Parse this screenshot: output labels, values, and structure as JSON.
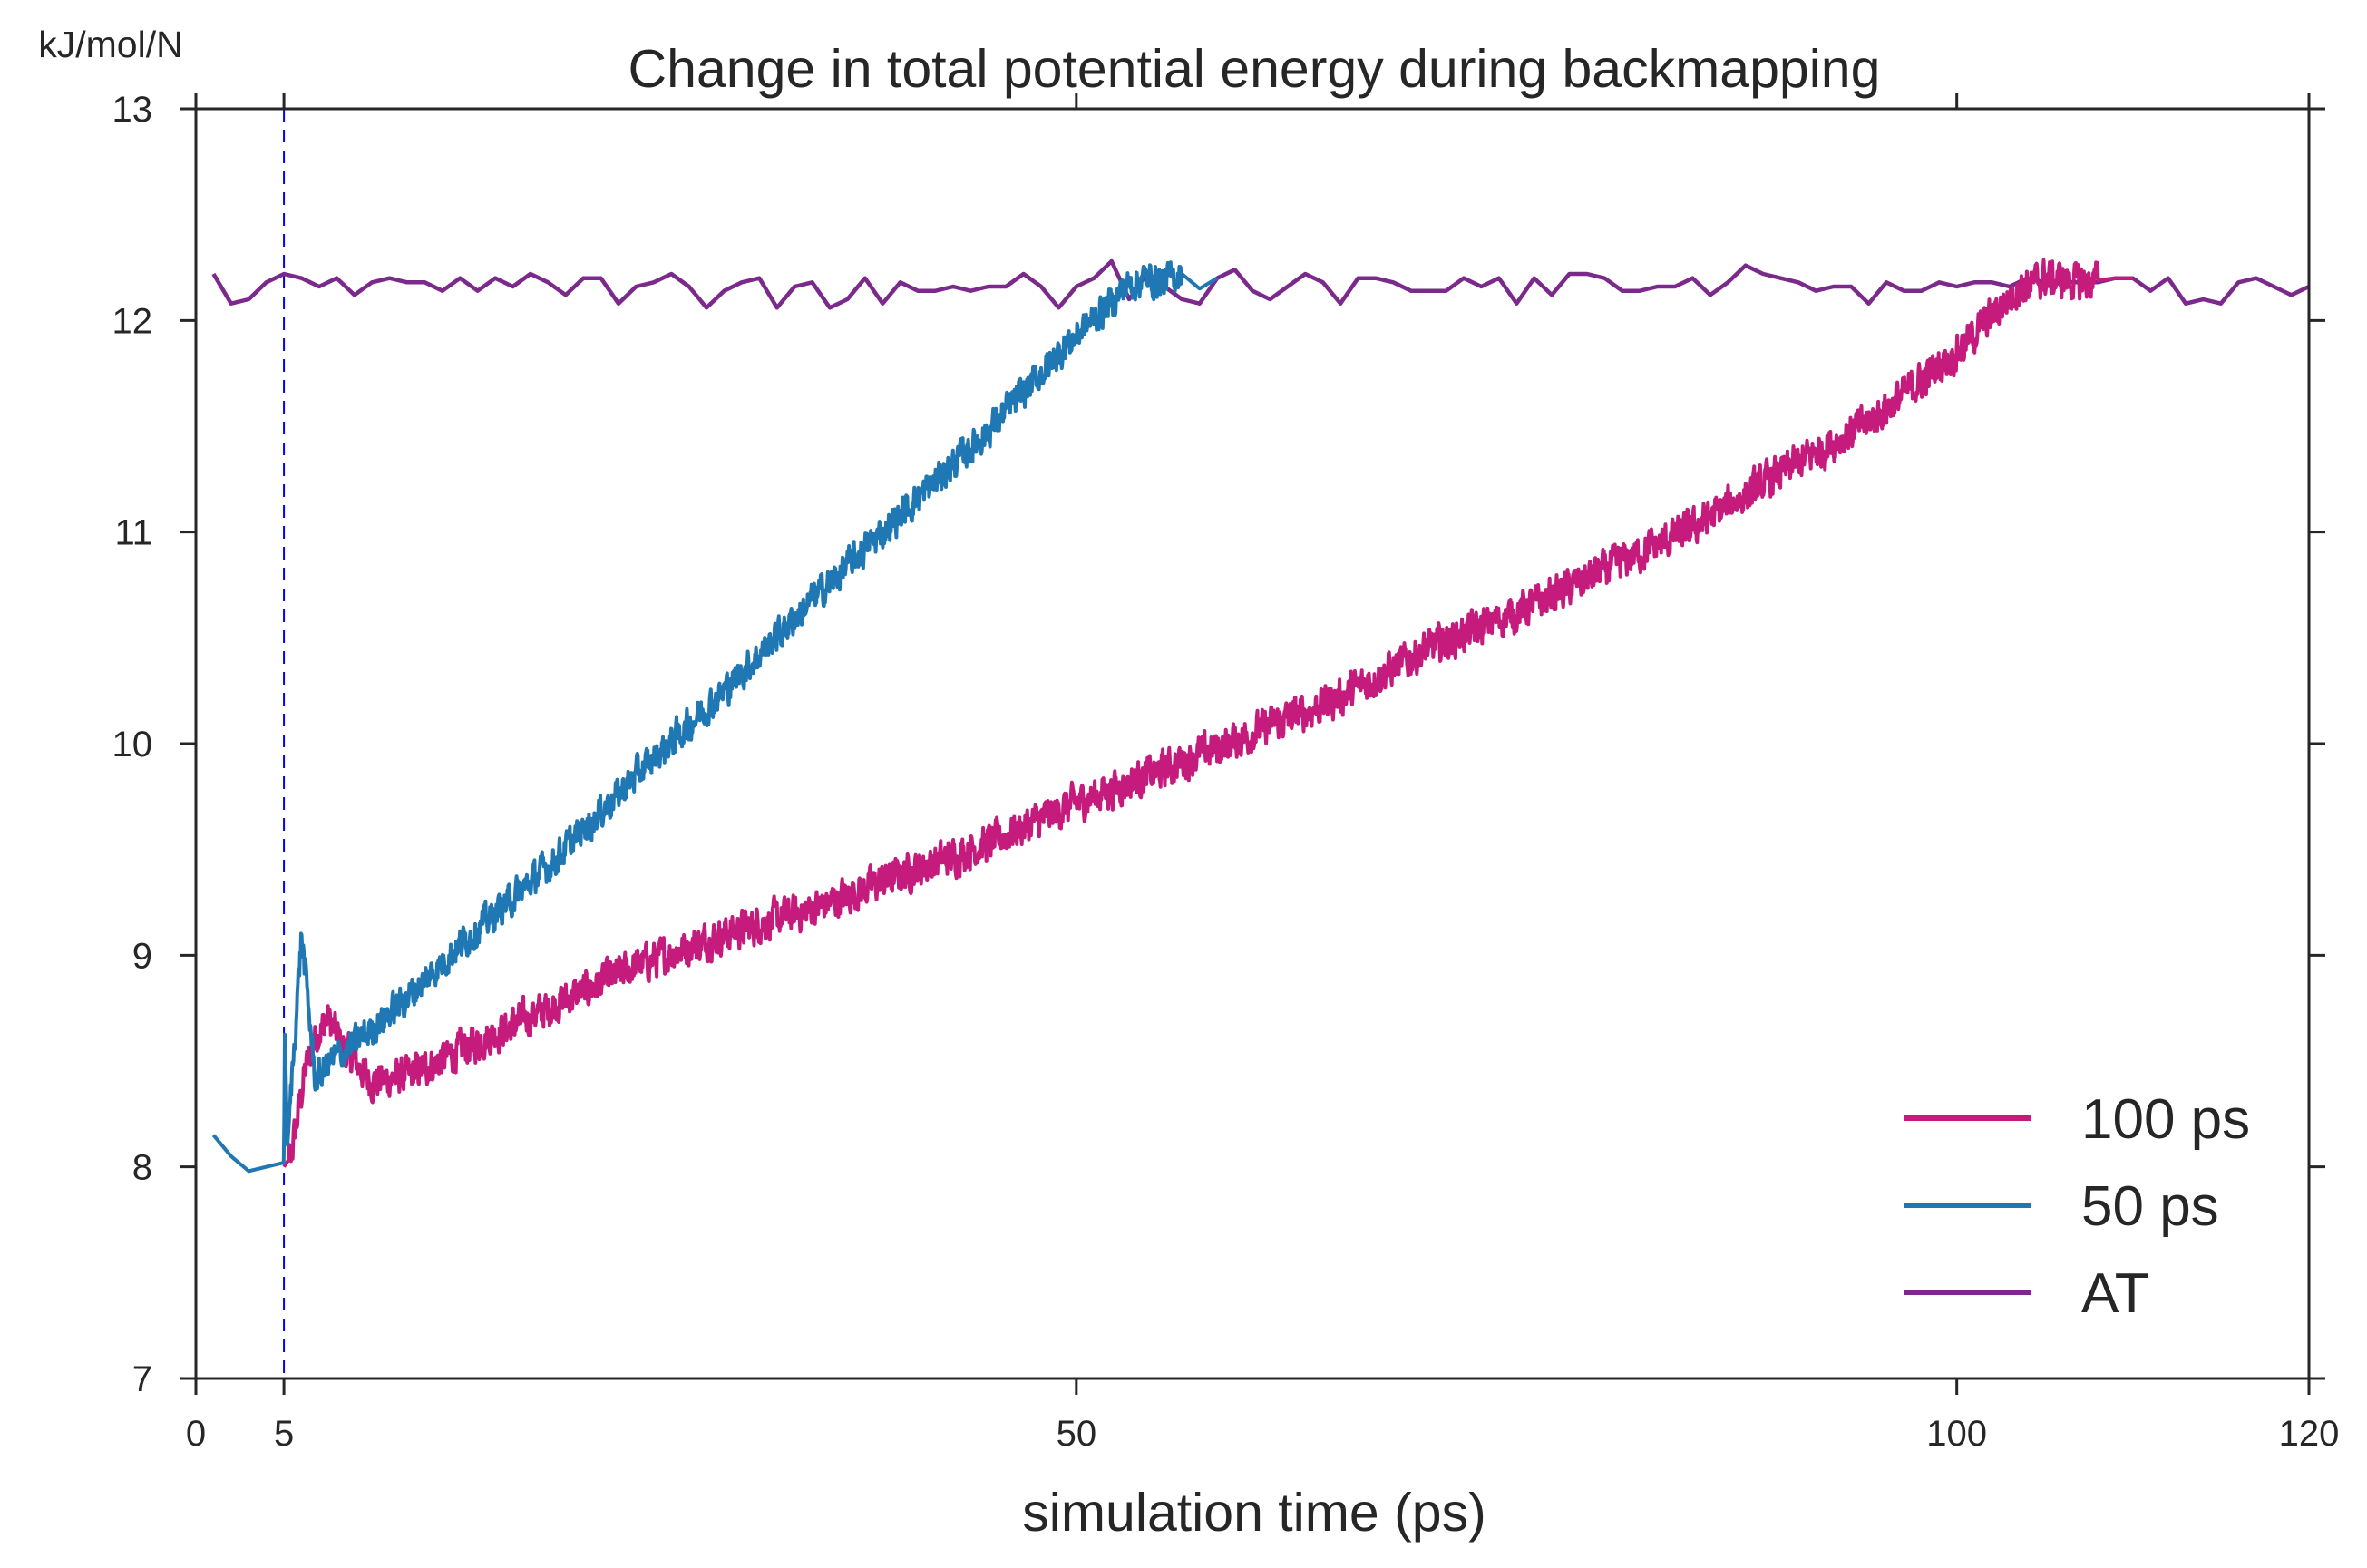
{
  "chart_data": {
    "type": "line",
    "title": "Change in total potential energy during backmapping",
    "xlabel": "simulation time (ps)",
    "ylabel": "kJ/mol/N",
    "xlim": [
      0,
      120
    ],
    "ylim": [
      7,
      13
    ],
    "x_ticks": [
      0,
      5,
      50,
      100,
      120
    ],
    "y_ticks": [
      7,
      8,
      9,
      10,
      11,
      12,
      13
    ],
    "grid": false,
    "legend_position": "lower-right",
    "vline": {
      "x": 5,
      "style": "dashed",
      "color": "#0000ff"
    },
    "series": [
      {
        "name": "100 ps",
        "color": "#c51b7d",
        "noise": 0.09,
        "x": [
          5.0,
          5.4,
          5.8,
          6.2,
          6.8,
          7.5,
          8.5,
          9.5,
          10.0,
          12.0,
          15.0,
          20.0,
          25.0,
          30.0,
          35.0,
          40.0,
          45.0,
          50.0,
          55.0,
          60.0,
          65.0,
          70.0,
          75.0,
          80.0,
          85.0,
          90.0,
          95.0,
          100.0,
          103.5,
          105.0,
          107.0,
          109.0,
          110.0
        ],
        "y": [
          8.0,
          8.05,
          8.25,
          8.45,
          8.62,
          8.7,
          8.55,
          8.45,
          8.4,
          8.43,
          8.55,
          8.75,
          8.95,
          9.1,
          9.22,
          9.38,
          9.53,
          9.72,
          9.88,
          10.05,
          10.22,
          10.45,
          10.62,
          10.82,
          11.02,
          11.28,
          11.52,
          11.85,
          12.15,
          12.2,
          12.18,
          12.2,
          12.2
        ]
      },
      {
        "name": "50 ps",
        "color": "#1f77b4",
        "noise": 0.08,
        "x": [
          1.0,
          2.0,
          3.0,
          4.0,
          5.0,
          5.05,
          5.2,
          5.6,
          6.0,
          6.4,
          6.8,
          7.2,
          7.6,
          8.0,
          8.5,
          10.0,
          12.0,
          15.0,
          20.0,
          25.0,
          30.0,
          35.0,
          40.0,
          45.0,
          50.0,
          53.0,
          54.0,
          55.0,
          56.0,
          57.0,
          58.0
        ],
        "y": [
          8.15,
          8.05,
          7.98,
          8.0,
          8.02,
          8.65,
          8.1,
          8.6,
          9.1,
          8.75,
          8.4,
          8.45,
          8.5,
          8.52,
          8.55,
          8.65,
          8.8,
          9.05,
          9.42,
          9.85,
          10.25,
          10.68,
          11.08,
          11.48,
          11.93,
          12.17,
          12.2,
          12.18,
          12.22,
          12.15,
          12.2
        ]
      },
      {
        "name": "AT",
        "color": "#7b2a8c",
        "x": [
          1,
          2,
          3,
          4,
          5,
          6,
          7,
          8,
          9,
          10,
          11,
          12,
          13,
          14,
          15,
          16,
          17,
          18,
          19,
          20,
          21,
          22,
          23,
          24,
          25,
          26,
          27,
          28,
          29,
          30,
          31,
          32,
          33,
          34,
          35,
          36,
          37,
          38,
          39,
          40,
          41,
          42,
          43,
          44,
          45,
          46,
          47,
          48,
          49,
          50,
          51,
          52,
          53,
          54,
          55,
          56,
          57,
          58,
          59,
          60,
          61,
          62,
          63,
          64,
          65,
          66,
          67,
          68,
          69,
          70,
          71,
          72,
          73,
          74,
          75,
          76,
          77,
          78,
          79,
          80,
          81,
          82,
          83,
          84,
          85,
          86,
          87,
          88,
          89,
          90,
          91,
          92,
          93,
          94,
          95,
          96,
          97,
          98,
          99,
          100,
          101,
          102,
          103,
          104,
          105,
          106,
          107,
          108,
          109,
          110,
          111,
          112,
          113,
          114,
          115,
          116,
          117,
          118,
          119,
          120
        ],
        "y": [
          12.22,
          12.08,
          12.1,
          12.18,
          12.22,
          12.2,
          12.16,
          12.2,
          12.12,
          12.18,
          12.2,
          12.18,
          12.18,
          12.14,
          12.2,
          12.14,
          12.2,
          12.16,
          12.22,
          12.18,
          12.12,
          12.2,
          12.2,
          12.08,
          12.16,
          12.18,
          12.22,
          12.16,
          12.06,
          12.14,
          12.18,
          12.2,
          12.06,
          12.16,
          12.18,
          12.06,
          12.1,
          12.2,
          12.08,
          12.18,
          12.14,
          12.14,
          12.16,
          12.14,
          12.16,
          12.16,
          12.22,
          12.16,
          12.06,
          12.16,
          12.2,
          12.28,
          12.1,
          12.22,
          12.16,
          12.1,
          12.08,
          12.2,
          12.24,
          12.14,
          12.1,
          12.16,
          12.22,
          12.18,
          12.08,
          12.2,
          12.2,
          12.18,
          12.14,
          12.14,
          12.14,
          12.2,
          12.16,
          12.2,
          12.08,
          12.2,
          12.12,
          12.22,
          12.22,
          12.2,
          12.14,
          12.14,
          12.16,
          12.16,
          12.2,
          12.12,
          12.18,
          12.26,
          12.22,
          12.2,
          12.18,
          12.14,
          12.16,
          12.16,
          12.08,
          12.18,
          12.14,
          12.14,
          12.18,
          12.16,
          12.18,
          12.18,
          12.16,
          12.2,
          12.18,
          12.18,
          12.18,
          12.18,
          12.2,
          12.2,
          12.14,
          12.2,
          12.08,
          12.1,
          12.08,
          12.18,
          12.2,
          12.16,
          12.12,
          12.16
        ]
      }
    ]
  }
}
